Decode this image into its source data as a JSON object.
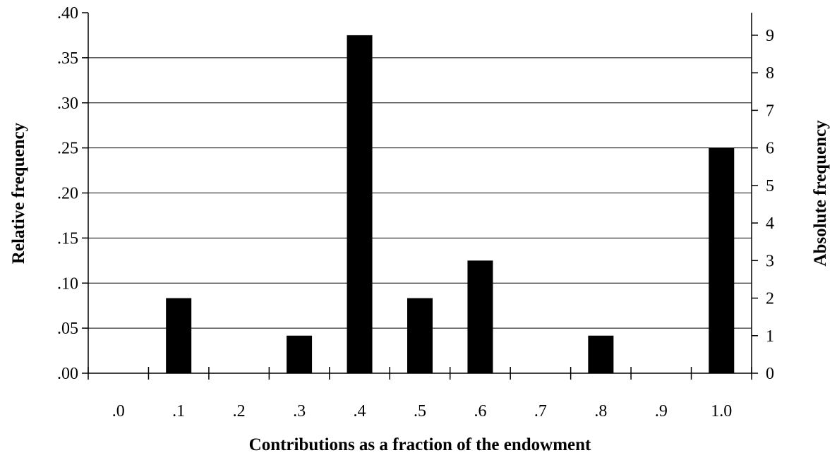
{
  "chart_data": {
    "type": "bar",
    "categories": [
      ".0",
      ".1",
      ".2",
      ".3",
      ".4",
      ".5",
      ".6",
      ".7",
      ".8",
      ".9",
      "1.0"
    ],
    "values": [
      0,
      0.0833,
      0,
      0.0417,
      0.375,
      0.0833,
      0.125,
      0,
      0.0417,
      0,
      0.25
    ],
    "absolute_values": [
      0,
      2,
      0,
      1,
      9,
      2,
      3,
      0,
      1,
      0,
      6
    ],
    "xlabel": "Contributions as a fraction of the endowment",
    "ylabel": "Relative frequency",
    "ylabel_right": "Absolute frequency",
    "ylim": [
      0,
      0.4
    ],
    "yticks": [
      ".00",
      ".05",
      ".10",
      ".15",
      ".20",
      ".25",
      ".30",
      ".35",
      ".40"
    ],
    "yticks_right": [
      "0",
      "1",
      "2",
      "3",
      "4",
      "5",
      "6",
      "7",
      "8",
      "9"
    ],
    "grid": true,
    "bar_color": "#000000"
  }
}
